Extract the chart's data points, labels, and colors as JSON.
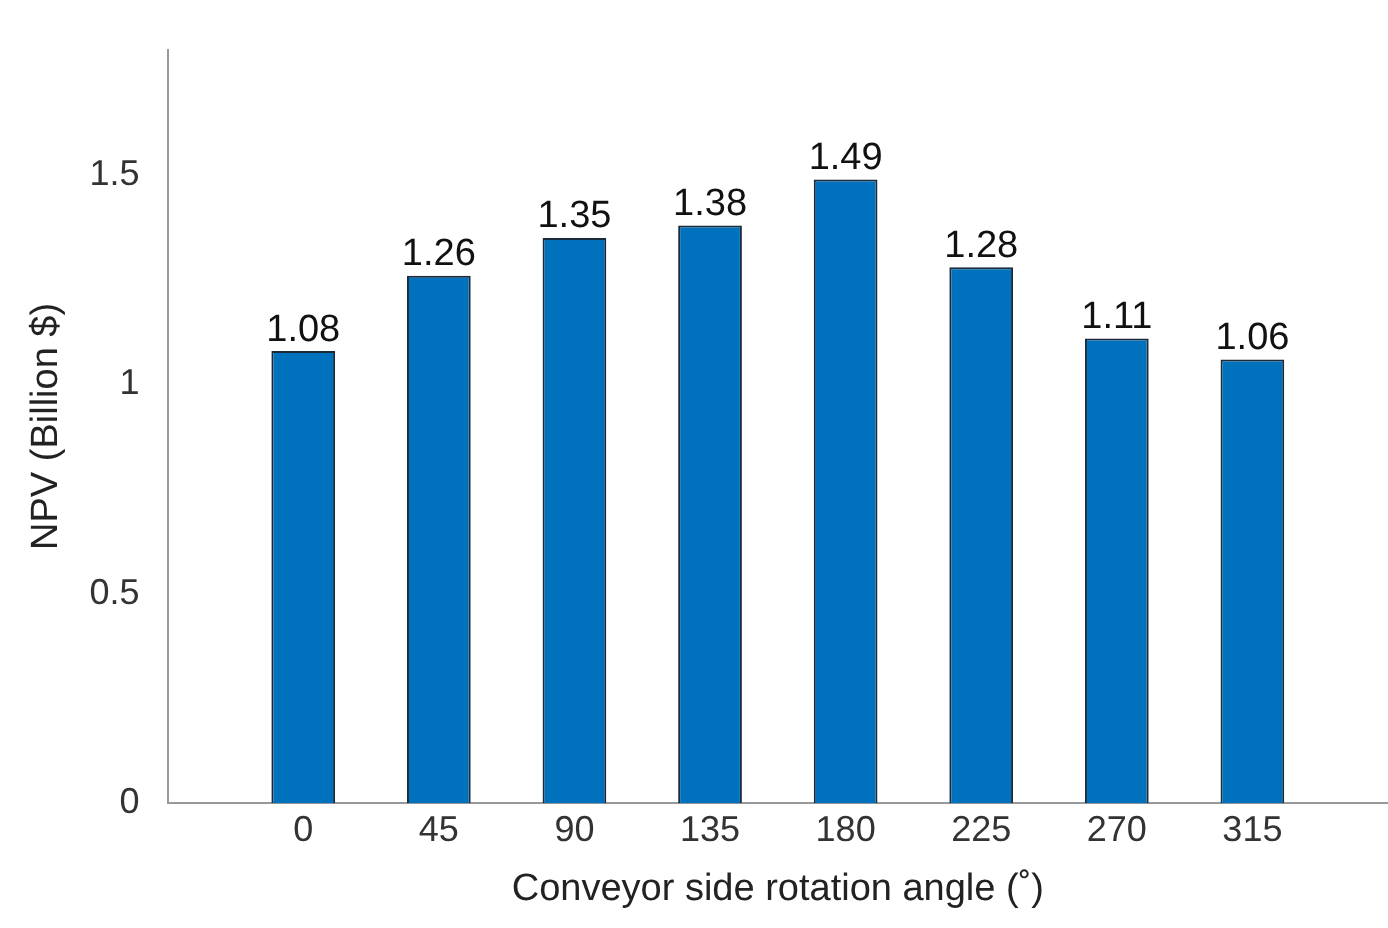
{
  "chart_data": {
    "type": "bar",
    "xlabel": "Conveyor side rotation angle (˚)",
    "ylabel": "NPV (Billion $)",
    "categories": [
      "0",
      "45",
      "90",
      "135",
      "180",
      "225",
      "270",
      "315"
    ],
    "values": [
      1.08,
      1.26,
      1.35,
      1.38,
      1.49,
      1.28,
      1.11,
      1.06
    ],
    "color": "#0072bd",
    "ylim": [
      0,
      1.8
    ],
    "yticks": [
      0,
      0.5,
      1,
      1.5
    ],
    "grid": false,
    "data_labels": true,
    "legend": false
  }
}
